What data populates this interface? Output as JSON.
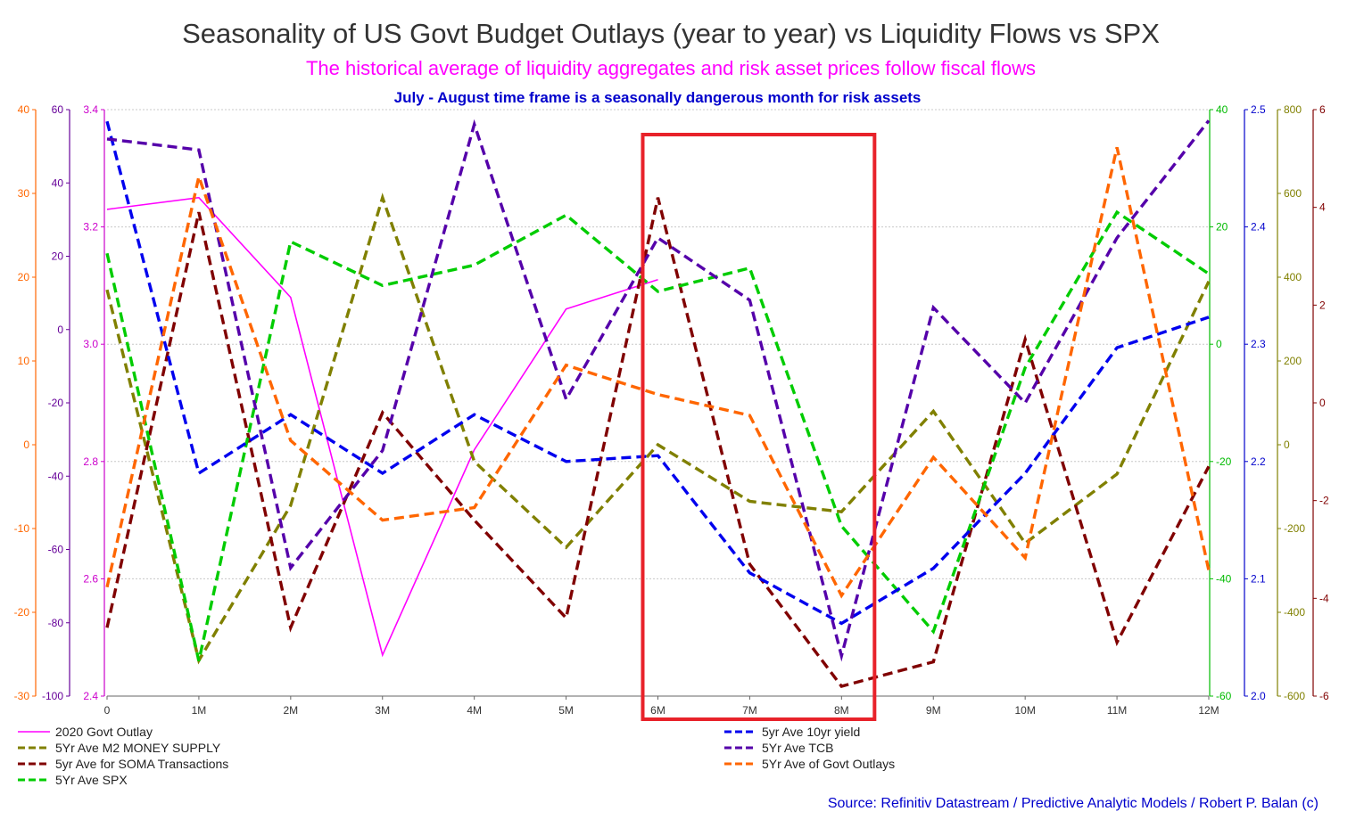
{
  "header": {
    "title": "Seasonality of US Govt Budget Outlays (year to year) vs Liquidity Flows vs SPX",
    "subtitle": "The historical average of liquidity aggregates and risk asset prices follow fiscal flows",
    "note": "July - August time frame is a seasonally dangerous month for risk assets",
    "source": "Source: Refinitiv Datastream / Predictive Analytic Models / Robert P. Balan (c)"
  },
  "colors": {
    "title": "#333333",
    "subtitle": "#ff00ff",
    "note": "#0000cc",
    "source": "#0000cc",
    "highlight_box": "#e8222a",
    "grid": "#cccccc"
  },
  "chart_data": {
    "type": "line",
    "title": "Seasonality of US Govt Budget Outlays (year to year) vs Liquidity Flows vs SPX",
    "x": [
      "0",
      "1M",
      "2M",
      "3M",
      "4M",
      "5M",
      "6M",
      "7M",
      "8M",
      "9M",
      "10M",
      "11M",
      "12M"
    ],
    "highlight": {
      "from": "6M",
      "to": "8M"
    },
    "grid": true,
    "legend_position": "bottom",
    "axes": {
      "left_orange": {
        "side": "left",
        "color": "#ff6600",
        "min": -30,
        "max": 40,
        "ticks": [
          "40",
          "30",
          "20",
          "10",
          "0",
          "-10",
          "-20",
          "-30"
        ]
      },
      "left_purple": {
        "side": "left",
        "color": "#660099",
        "min": -100,
        "max": 60,
        "ticks": [
          "60",
          "40",
          "20",
          "0",
          "-20",
          "-40",
          "-60",
          "-80",
          "-100"
        ]
      },
      "left_magenta": {
        "side": "left",
        "color": "#cc00cc",
        "min": 2.4,
        "max": 3.4,
        "ticks": [
          "3.4",
          "3.2",
          "3.0",
          "2.8",
          "2.6",
          "2.4"
        ]
      },
      "right_green": {
        "side": "right",
        "color": "#00bb00",
        "min": -60,
        "max": 40,
        "ticks": [
          "40",
          "20",
          "0",
          "-20",
          "-40",
          "-60"
        ]
      },
      "right_blue": {
        "side": "right",
        "color": "#0000cc",
        "min": 2.0,
        "max": 2.5,
        "ticks": [
          "2.5",
          "2.4",
          "2.3",
          "2.2",
          "2.1",
          "2.0"
        ]
      },
      "right_olive": {
        "side": "right",
        "color": "#808000",
        "min": -600,
        "max": 800,
        "ticks": [
          "800",
          "600",
          "400",
          "200",
          "0",
          "-200",
          "-400",
          "-600"
        ]
      },
      "right_darkred": {
        "side": "right",
        "color": "#800000",
        "min": -6,
        "max": 6,
        "ticks": [
          "6",
          "4",
          "2",
          "0",
          "-2",
          "-4",
          "-6"
        ]
      }
    },
    "series": [
      {
        "name": "2020 Govt Outlay",
        "axis": "left_magenta",
        "color": "#ff00ff",
        "dash": false,
        "values": [
          3.23,
          3.25,
          3.08,
          2.47,
          2.82,
          3.06,
          3.11,
          null,
          null,
          null,
          null,
          null,
          null
        ]
      },
      {
        "name": "5Yr Ave M2 MONEY SUPPLY",
        "axis": "right_olive",
        "color": "#808000",
        "dash": true,
        "values": [
          370,
          -515,
          -145,
          590,
          -40,
          -245,
          0,
          -135,
          -160,
          80,
          -235,
          -70,
          390
        ]
      },
      {
        "name": "5yr Ave for SOMA Transactions",
        "axis": "right_darkred",
        "color": "#800000",
        "dash": true,
        "values": [
          -4.6,
          3.9,
          -4.6,
          -0.2,
          -2.4,
          -4.4,
          4.2,
          -3.3,
          -5.8,
          -5.3,
          1.3,
          -4.9,
          -1.3
        ]
      },
      {
        "name": "5Yr Ave SPX",
        "axis": "right_green",
        "color": "#00cc00",
        "dash": true,
        "values": [
          15.5,
          -54,
          17.5,
          10,
          13.5,
          22,
          9,
          13,
          -31,
          -49,
          -4,
          22.5,
          12
        ]
      },
      {
        "name": "5yr Ave 10yr yield",
        "axis": "right_blue",
        "color": "#0000ee",
        "dash": true,
        "values": [
          2.49,
          2.19,
          2.24,
          2.19,
          2.24,
          2.2,
          2.205,
          2.105,
          2.062,
          2.109,
          2.19,
          2.297,
          2.323
        ]
      },
      {
        "name": "5Yr Ave TCB",
        "axis": "left_purple",
        "color": "#5500aa",
        "dash": true,
        "values": [
          52,
          49,
          -65,
          -33,
          56,
          -19,
          25,
          8,
          -89,
          6,
          -20,
          25,
          57
        ]
      },
      {
        "name": "5Yr Ave of Govt Outlays",
        "axis": "left_orange",
        "color": "#ff6600",
        "dash": true,
        "values": [
          -17,
          32,
          0.5,
          -9,
          -7.5,
          9.5,
          6,
          3.5,
          -18,
          -1.5,
          -13.5,
          35.5,
          -15
        ]
      }
    ]
  }
}
